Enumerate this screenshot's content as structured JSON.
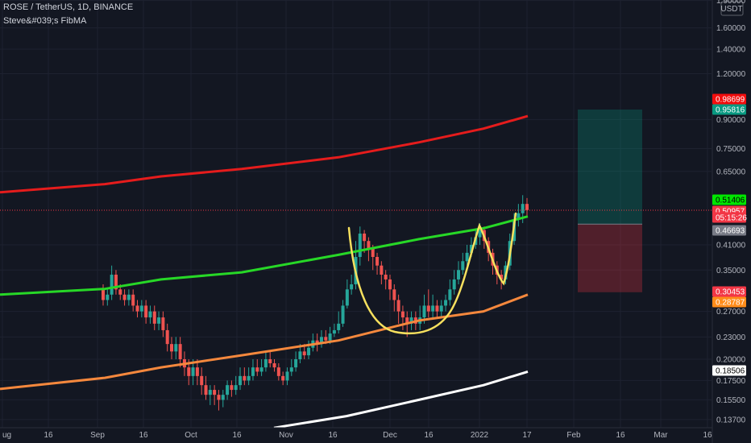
{
  "header": {
    "symbol": "ROSE / TetherUS, 1D, BINANCE",
    "indicator": "Steve&#039;s FibMA"
  },
  "price_axis": {
    "currency": "USDT",
    "ticks": [
      "1.90000",
      "1.60000",
      "1.40000",
      "1.20000",
      "0.90000",
      "0.75000",
      "0.65000",
      "0.41000",
      "0.35000",
      "0.27000",
      "0.23000",
      "0.20000",
      "0.17500",
      "0.15500",
      "0.13700"
    ]
  },
  "time_axis": {
    "labels": [
      "ug",
      "16",
      "Sep",
      "16",
      "Oct",
      "16",
      "Nov",
      "16",
      "Dec",
      "16",
      "2022",
      "17",
      "Feb",
      "16",
      "Mar",
      "16"
    ]
  },
  "price_tags": [
    {
      "name": "upper-ma-tag",
      "text": "0.98699",
      "bg": "#f20d0d",
      "fg": "#ffffff"
    },
    {
      "name": "tp-tag",
      "text": "0.95816",
      "bg": "#089981",
      "fg": "#ffffff"
    },
    {
      "name": "green-ma-tag",
      "text": "0.51406",
      "bg": "#00e600",
      "fg": "#000000"
    },
    {
      "name": "last-price-tag",
      "text": "0.50957",
      "bg": "#f23645",
      "fg": "#ffffff"
    },
    {
      "name": "countdown-tag",
      "text": "05:15:26",
      "bg": "#f23645",
      "fg": "#ffffff"
    },
    {
      "name": "entry-tag",
      "text": "0.46693",
      "bg": "#787b86",
      "fg": "#ffffff"
    },
    {
      "name": "sl-tag",
      "text": "0.30453",
      "bg": "#f23645",
      "fg": "#ffffff"
    },
    {
      "name": "orange-ma-tag",
      "text": "0.28787",
      "bg": "#ff8c1a",
      "fg": "#ffffff"
    },
    {
      "name": "white-ma-tag",
      "text": "0.18506",
      "bg": "#ffffff",
      "fg": "#000000"
    }
  ],
  "chart_data": {
    "type": "candlestick",
    "symbol": "ROSE / TetherUS",
    "interval": "1D",
    "exchange": "BINANCE",
    "y_scale": "log",
    "ylim": [
      0.13,
      1.9
    ],
    "last_price": 0.50957,
    "colors": {
      "up": "#26a69a",
      "down": "#ef5350",
      "red_ma": "#e51c1c",
      "green_ma": "#27d827",
      "orange_ma": "#f5883d",
      "white_ma": "#ffffff",
      "pattern": "#f6e05e"
    },
    "moving_averages": [
      {
        "color": "red",
        "values": [
          [
            0,
            0.57
          ],
          [
            130,
            0.6
          ],
          [
            200,
            0.63
          ],
          [
            300,
            0.66
          ],
          [
            420,
            0.71
          ],
          [
            520,
            0.78
          ],
          [
            600,
            0.85
          ],
          [
            655,
            0.92
          ]
        ]
      },
      {
        "color": "green",
        "values": [
          [
            0,
            0.3
          ],
          [
            130,
            0.311
          ],
          [
            200,
            0.33
          ],
          [
            300,
            0.345
          ],
          [
            420,
            0.385
          ],
          [
            520,
            0.425
          ],
          [
            600,
            0.455
          ],
          [
            655,
            0.49
          ]
        ]
      },
      {
        "color": "orange",
        "values": [
          [
            0,
            0.166
          ],
          [
            130,
            0.178
          ],
          [
            200,
            0.19
          ],
          [
            300,
            0.205
          ],
          [
            420,
            0.225
          ],
          [
            520,
            0.255
          ],
          [
            600,
            0.27
          ],
          [
            655,
            0.3
          ]
        ]
      },
      {
        "color": "white",
        "values": [
          [
            340,
            0.13
          ],
          [
            430,
            0.14
          ],
          [
            520,
            0.155
          ],
          [
            600,
            0.17
          ],
          [
            655,
            0.185
          ]
        ]
      }
    ],
    "position": {
      "type": "long",
      "entry": 0.46693,
      "target": 0.95816,
      "stop": 0.30453
    },
    "ohlc": [
      [
        0.31,
        0.29,
        0.32,
        0.28
      ],
      [
        0.29,
        0.3,
        0.31,
        0.28
      ],
      [
        0.3,
        0.34,
        0.36,
        0.29
      ],
      [
        0.34,
        0.31,
        0.35,
        0.3
      ],
      [
        0.31,
        0.3,
        0.32,
        0.29
      ],
      [
        0.3,
        0.29,
        0.31,
        0.28
      ],
      [
        0.29,
        0.3,
        0.31,
        0.28
      ],
      [
        0.3,
        0.28,
        0.31,
        0.27
      ],
      [
        0.28,
        0.27,
        0.29,
        0.26
      ],
      [
        0.27,
        0.28,
        0.29,
        0.26
      ],
      [
        0.28,
        0.26,
        0.29,
        0.25
      ],
      [
        0.26,
        0.27,
        0.28,
        0.25
      ],
      [
        0.27,
        0.25,
        0.28,
        0.24
      ],
      [
        0.25,
        0.26,
        0.27,
        0.24
      ],
      [
        0.26,
        0.24,
        0.27,
        0.23
      ],
      [
        0.24,
        0.22,
        0.25,
        0.21
      ],
      [
        0.22,
        0.21,
        0.23,
        0.2
      ],
      [
        0.21,
        0.22,
        0.23,
        0.2
      ],
      [
        0.22,
        0.2,
        0.23,
        0.19
      ],
      [
        0.2,
        0.19,
        0.21,
        0.18
      ],
      [
        0.19,
        0.18,
        0.2,
        0.17
      ],
      [
        0.18,
        0.19,
        0.2,
        0.17
      ],
      [
        0.19,
        0.18,
        0.2,
        0.17
      ],
      [
        0.18,
        0.17,
        0.19,
        0.16
      ],
      [
        0.17,
        0.16,
        0.18,
        0.155
      ],
      [
        0.16,
        0.165,
        0.17,
        0.15
      ],
      [
        0.165,
        0.16,
        0.17,
        0.15
      ],
      [
        0.16,
        0.155,
        0.165,
        0.145
      ],
      [
        0.155,
        0.16,
        0.165,
        0.148
      ],
      [
        0.16,
        0.17,
        0.175,
        0.155
      ],
      [
        0.17,
        0.165,
        0.175,
        0.158
      ],
      [
        0.165,
        0.17,
        0.18,
        0.16
      ],
      [
        0.17,
        0.18,
        0.19,
        0.165
      ],
      [
        0.18,
        0.175,
        0.19,
        0.17
      ],
      [
        0.175,
        0.18,
        0.19,
        0.17
      ],
      [
        0.18,
        0.19,
        0.2,
        0.175
      ],
      [
        0.19,
        0.185,
        0.2,
        0.18
      ],
      [
        0.185,
        0.19,
        0.2,
        0.18
      ],
      [
        0.19,
        0.2,
        0.21,
        0.185
      ],
      [
        0.2,
        0.195,
        0.21,
        0.19
      ],
      [
        0.195,
        0.19,
        0.2,
        0.185
      ],
      [
        0.19,
        0.18,
        0.195,
        0.175
      ],
      [
        0.18,
        0.175,
        0.185,
        0.17
      ],
      [
        0.175,
        0.185,
        0.19,
        0.17
      ],
      [
        0.185,
        0.19,
        0.2,
        0.18
      ],
      [
        0.19,
        0.2,
        0.21,
        0.185
      ],
      [
        0.2,
        0.21,
        0.22,
        0.195
      ],
      [
        0.21,
        0.205,
        0.22,
        0.2
      ],
      [
        0.205,
        0.215,
        0.225,
        0.2
      ],
      [
        0.215,
        0.225,
        0.235,
        0.21
      ],
      [
        0.225,
        0.22,
        0.235,
        0.21
      ],
      [
        0.22,
        0.23,
        0.24,
        0.215
      ],
      [
        0.23,
        0.225,
        0.24,
        0.22
      ],
      [
        0.225,
        0.235,
        0.245,
        0.22
      ],
      [
        0.235,
        0.24,
        0.25,
        0.23
      ],
      [
        0.24,
        0.25,
        0.27,
        0.235
      ],
      [
        0.25,
        0.28,
        0.29,
        0.245
      ],
      [
        0.28,
        0.31,
        0.33,
        0.275
      ],
      [
        0.31,
        0.32,
        0.34,
        0.3
      ],
      [
        0.32,
        0.38,
        0.42,
        0.31
      ],
      [
        0.38,
        0.44,
        0.46,
        0.36
      ],
      [
        0.44,
        0.42,
        0.45,
        0.39
      ],
      [
        0.42,
        0.4,
        0.43,
        0.37
      ],
      [
        0.4,
        0.38,
        0.41,
        0.35
      ],
      [
        0.38,
        0.36,
        0.39,
        0.34
      ],
      [
        0.36,
        0.34,
        0.37,
        0.32
      ],
      [
        0.34,
        0.33,
        0.35,
        0.31
      ],
      [
        0.33,
        0.31,
        0.34,
        0.29
      ],
      [
        0.31,
        0.29,
        0.32,
        0.27
      ],
      [
        0.29,
        0.27,
        0.3,
        0.25
      ],
      [
        0.27,
        0.26,
        0.28,
        0.24
      ],
      [
        0.26,
        0.25,
        0.27,
        0.23
      ],
      [
        0.25,
        0.26,
        0.27,
        0.24
      ],
      [
        0.26,
        0.25,
        0.27,
        0.24
      ],
      [
        0.25,
        0.26,
        0.28,
        0.24
      ],
      [
        0.26,
        0.28,
        0.3,
        0.25
      ],
      [
        0.28,
        0.27,
        0.31,
        0.26
      ],
      [
        0.27,
        0.28,
        0.3,
        0.26
      ],
      [
        0.28,
        0.27,
        0.29,
        0.26
      ],
      [
        0.27,
        0.28,
        0.29,
        0.26
      ],
      [
        0.28,
        0.29,
        0.3,
        0.27
      ],
      [
        0.29,
        0.31,
        0.33,
        0.28
      ],
      [
        0.31,
        0.33,
        0.35,
        0.3
      ],
      [
        0.33,
        0.35,
        0.37,
        0.32
      ],
      [
        0.35,
        0.37,
        0.39,
        0.34
      ],
      [
        0.37,
        0.39,
        0.41,
        0.36
      ],
      [
        0.39,
        0.41,
        0.43,
        0.38
      ],
      [
        0.41,
        0.43,
        0.45,
        0.4
      ],
      [
        0.43,
        0.45,
        0.47,
        0.41
      ],
      [
        0.45,
        0.42,
        0.46,
        0.4
      ],
      [
        0.42,
        0.39,
        0.43,
        0.37
      ],
      [
        0.39,
        0.36,
        0.4,
        0.34
      ],
      [
        0.36,
        0.34,
        0.37,
        0.32
      ],
      [
        0.34,
        0.33,
        0.35,
        0.31
      ],
      [
        0.33,
        0.36,
        0.37,
        0.32
      ],
      [
        0.36,
        0.42,
        0.44,
        0.35
      ],
      [
        0.42,
        0.48,
        0.5,
        0.41
      ],
      [
        0.48,
        0.5,
        0.53,
        0.46
      ],
      [
        0.5,
        0.53,
        0.56,
        0.47
      ],
      [
        0.53,
        0.51,
        0.55,
        0.49
      ]
    ],
    "annotations": [
      {
        "type": "curve",
        "description": "cup and handle drawing",
        "color": "#f6e05e"
      }
    ]
  }
}
